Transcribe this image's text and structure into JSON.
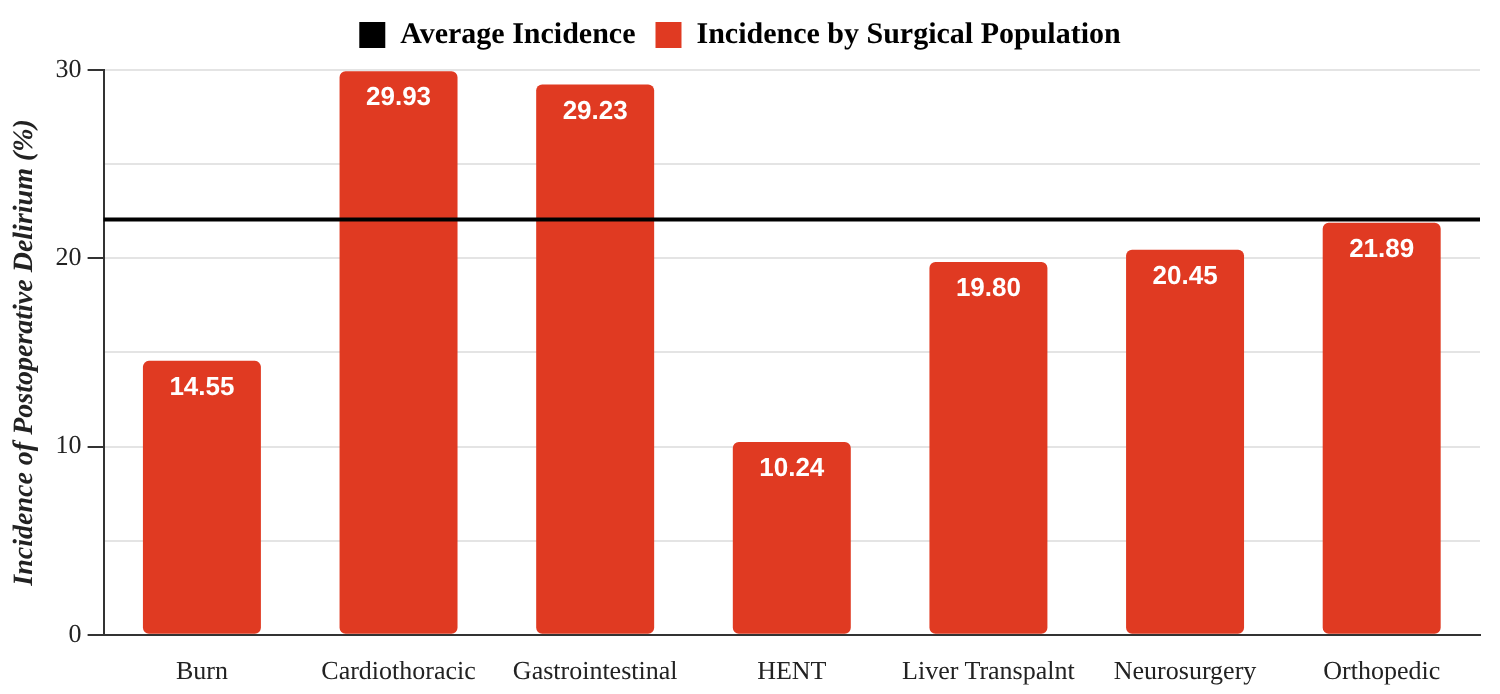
{
  "chart_data": {
    "type": "bar",
    "ylabel": "Incidence of Postoperative Delirium (%)",
    "categories": [
      "Burn",
      "Cardiothoracic",
      "Gastrointestinal",
      "HENT",
      "Liver Transpalnt",
      "Neurosurgery",
      "Orthopedic"
    ],
    "series": [
      {
        "name": "Incidence by Surgical Population",
        "color": "#e03a22",
        "values": [
          14.55,
          29.93,
          29.23,
          10.24,
          19.8,
          20.45,
          21.89
        ]
      }
    ],
    "value_labels": [
      "14.55",
      "29.93",
      "29.23",
      "10.24",
      "19.80",
      "20.45",
      "21.89"
    ],
    "ref_lines": [
      {
        "axis": "y",
        "value": 22.06,
        "label": "Average Incidence",
        "color": "#000000"
      }
    ],
    "ylim": [
      0,
      30
    ],
    "yticks": [
      0,
      {
        "value": 5,
        "label": null
      },
      10,
      {
        "value": 15,
        "label": null
      },
      20,
      {
        "value": 25,
        "label": null
      },
      30
    ],
    "grid": "y",
    "legend": "top"
  }
}
